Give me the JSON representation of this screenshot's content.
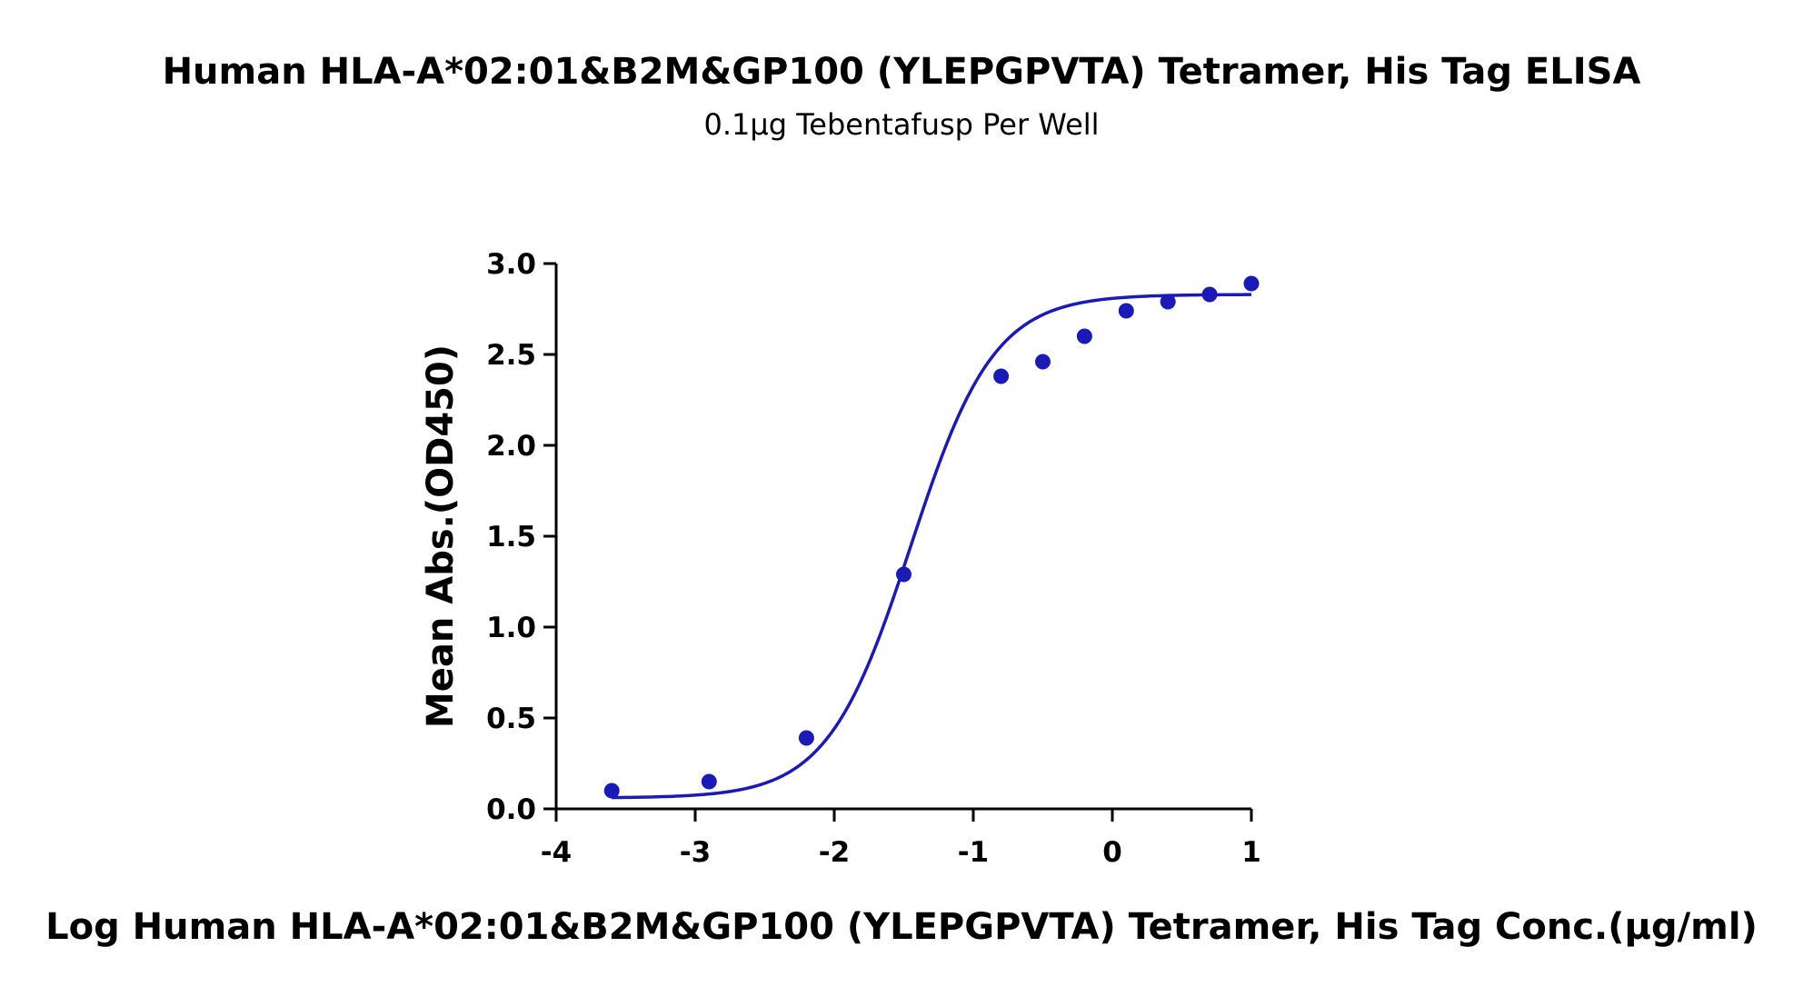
{
  "chart_data": {
    "type": "scatter",
    "title": "Human HLA-A*02:01&B2M&GP100 (YLEPGPVTA) Tetramer, His Tag ELISA",
    "subtitle": "0.1μg Tebentafusp Per Well",
    "xlabel": "Log Human HLA-A*02:01&B2M&GP100 (YLEPGPVTA) Tetramer, His Tag Conc.(μg/ml)",
    "ylabel": "Mean Abs.(OD450)",
    "xlim": [
      -4,
      1
    ],
    "ylim": [
      0,
      3
    ],
    "x_ticks": [
      "-4",
      "-3",
      "-2",
      "-1",
      "0",
      "1"
    ],
    "y_ticks": [
      "0.0",
      "0.5",
      "1.0",
      "1.5",
      "2.0",
      "2.5",
      "3.0"
    ],
    "grid": false,
    "color": "#1a1ab8",
    "series": [
      {
        "points": [
          {
            "x": -3.6,
            "y": 0.1
          },
          {
            "x": -2.9,
            "y": 0.15
          },
          {
            "x": -2.2,
            "y": 0.39
          },
          {
            "x": -1.5,
            "y": 1.29
          },
          {
            "x": -0.8,
            "y": 2.38
          },
          {
            "x": -0.5,
            "y": 2.46
          },
          {
            "x": -0.2,
            "y": 2.6
          },
          {
            "x": 0.1,
            "y": 2.74
          },
          {
            "x": 0.4,
            "y": 2.79
          },
          {
            "x": 0.7,
            "y": 2.83
          },
          {
            "x": 1.0,
            "y": 2.89
          }
        ],
        "fit": {
          "type": "4PL",
          "bottom": 0.06,
          "top": 2.83,
          "logEC50": -1.45,
          "hill": 1.45
        }
      }
    ]
  }
}
